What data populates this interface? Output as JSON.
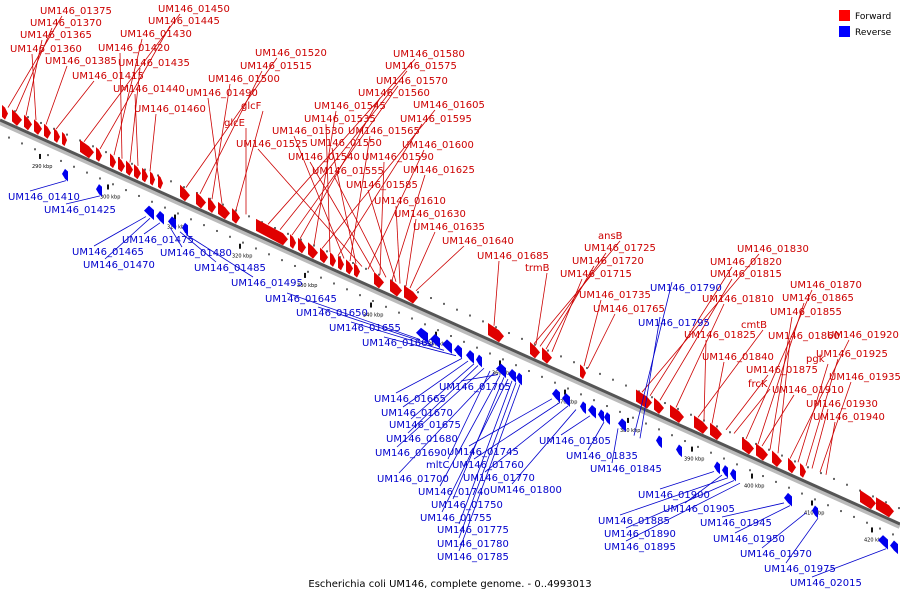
{
  "legend": [
    {
      "label": "Forward",
      "color": "#ff0000"
    },
    {
      "label": "Reverse",
      "color": "#0000ff"
    }
  ],
  "caption": "Escherichia coli UM146, complete genome. - 0..4993013",
  "axis": {
    "ticks": [
      "290 kbp",
      "300 kbp",
      "310 kbp",
      "320 kbp",
      "330 kbp",
      "340 kbp",
      "350 kbp",
      "360 kbp",
      "370 kbp",
      "380 kbp",
      "390 kbp",
      "400 kbp",
      "410 kbp",
      "420 kbp"
    ]
  },
  "colors": {
    "forward": "#e00000",
    "reverse": "#0000ee",
    "forward_label": "#cc0000",
    "reverse_label": "#0000cc"
  },
  "forward_labels": [
    "UM146_01375",
    "UM146_01370",
    "UM146_01365",
    "UM146_01360",
    "UM146_01385",
    "UM146_01415",
    "UM146_01450",
    "UM146_01445",
    "UM146_01430",
    "UM146_01420",
    "UM146_01435",
    "UM146_01440",
    "UM146_01460",
    "UM146_01520",
    "UM146_01515",
    "UM146_01500",
    "UM146_01490",
    "glcF",
    "glcE",
    "UM146_01580",
    "UM146_01575",
    "UM146_01570",
    "UM146_01560",
    "UM146_01545",
    "UM146_01605",
    "UM146_01535",
    "UM146_01595",
    "UM146_01530",
    "UM146_01565",
    "UM146_01550",
    "UM146_01525",
    "UM146_01600",
    "UM146_01540",
    "UM146_01590",
    "UM146_01555",
    "UM146_01625",
    "UM146_01585",
    "UM146_01610",
    "UM146_01630",
    "UM146_01635",
    "UM146_01640",
    "ansB",
    "UM146_01725",
    "UM146_01720",
    "UM146_01685",
    "trmB",
    "UM146_01715",
    "UM146_01735",
    "UM146_01765",
    "UM146_01830",
    "UM146_01820",
    "UM146_01815",
    "UM146_01810",
    "cmtB",
    "UM146_01825",
    "UM146_01870",
    "UM146_01865",
    "UM146_01855",
    "UM146_01860",
    "UM146_01840",
    "UM146_01875",
    "frcK",
    "UM146_01920",
    "pgk",
    "UM146_01925",
    "UM146_01935",
    "UM146_01910",
    "UM146_01930",
    "UM146_01940"
  ],
  "reverse_labels": [
    "UM146_01410",
    "UM146_01425",
    "UM146_01465",
    "UM146_01475",
    "UM146_01470",
    "UM146_01480",
    "UM146_01485",
    "UM146_01495",
    "UM146_01645",
    "UM146_01650",
    "UM146_01655",
    "UM146_01660",
    "UM146_01665",
    "UM146_01670",
    "UM146_01675",
    "UM146_01680",
    "UM146_01690",
    "mltC",
    "UM146_01700",
    "UM146_01740",
    "UM146_01750",
    "UM146_01755",
    "UM146_01775",
    "UM146_01780",
    "UM146_01785",
    "UM146_01705",
    "UM146_01745",
    "UM146_01760",
    "UM146_01770",
    "UM146_01800",
    "UM146_01805",
    "UM146_01835",
    "UM146_01845",
    "UM146_01790",
    "UM146_01795",
    "UM146_01900",
    "UM146_01905",
    "UM146_01885",
    "UM146_01890",
    "UM146_01895",
    "UM146_01945",
    "UM146_01950",
    "UM146_01970",
    "UM146_01975",
    "UM146_02015"
  ]
}
